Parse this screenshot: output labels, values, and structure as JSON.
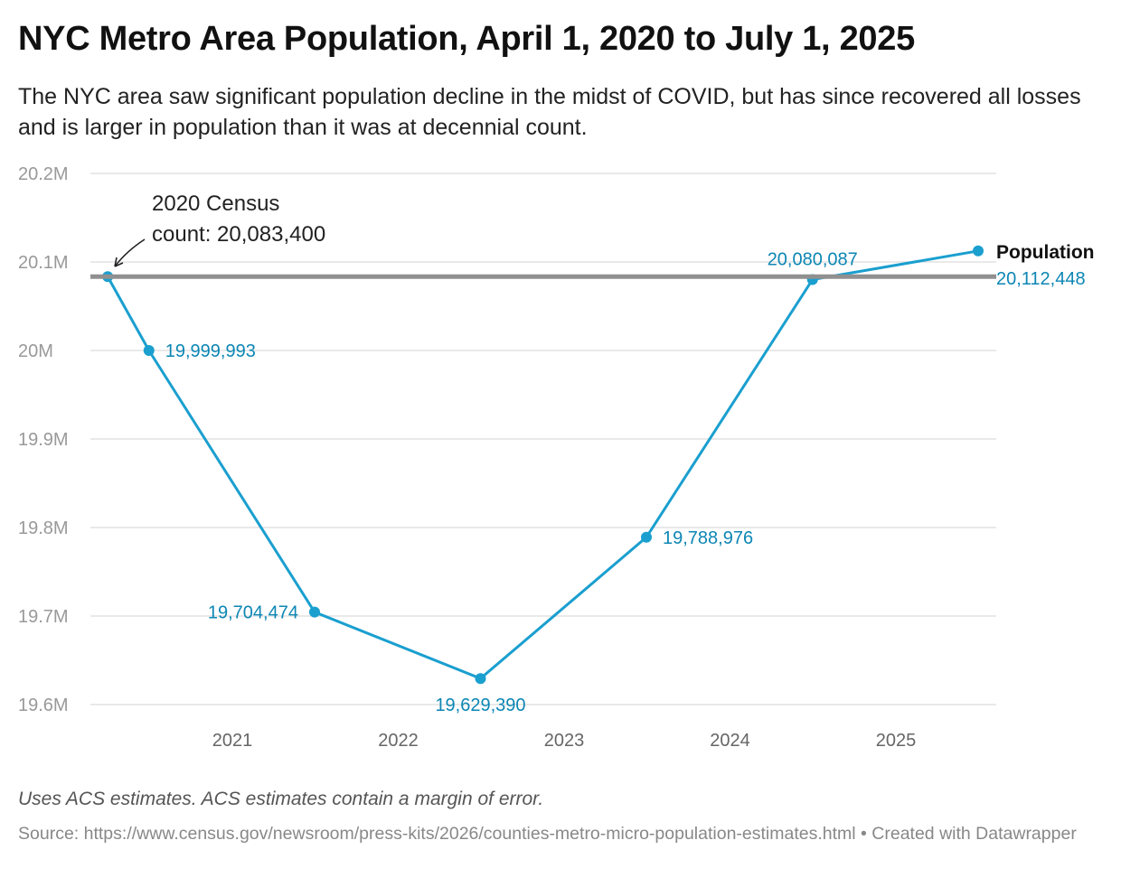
{
  "title": "NYC Metro Area Population, April 1, 2020 to July 1, 2025",
  "subtitle": "The NYC area saw significant population decline in the midst of COVID, but has since recovered all losses and is larger in population than it was at decennial count.",
  "notes": "Uses ACS estimates. ACS estimates contain a margin of error.",
  "source": "Source: https://www.census.gov/newsroom/press-kits/2026/counties-metro-micro-population-estimates.html • Created with Datawrapper",
  "chart_data": {
    "type": "line",
    "title": "NYC Metro Area Population, April 1, 2020 to July 1, 2025",
    "x": [
      "2020-04-01",
      "2020-07-01",
      "2021-07-01",
      "2022-07-01",
      "2023-07-01",
      "2024-07-01",
      "2025-07-01"
    ],
    "series": [
      {
        "name": "Population",
        "values": [
          20083400,
          19999993,
          19704474,
          19629390,
          19788976,
          20080087,
          20112448
        ],
        "labels": [
          "",
          "19,999,993",
          "19,704,474",
          "19,629,390",
          "19,788,976",
          "20,080,087",
          "20,112,448"
        ]
      }
    ],
    "ylim": [
      19600000,
      20200000
    ],
    "yticks": [
      {
        "v": 20200000,
        "label": "20.2M"
      },
      {
        "v": 20100000,
        "label": "20.1M"
      },
      {
        "v": 20000000,
        "label": "20M"
      },
      {
        "v": 19900000,
        "label": "19.9M"
      },
      {
        "v": 19800000,
        "label": "19.8M"
      },
      {
        "v": 19700000,
        "label": "19.7M"
      },
      {
        "v": 19600000,
        "label": "19.6M"
      }
    ],
    "xticks": [
      "2021",
      "2022",
      "2023",
      "2024",
      "2025"
    ],
    "reference_line": {
      "value": 20083400,
      "annotation": [
        "2020 Census",
        "count: 20,083,400"
      ],
      "color": "#909090"
    },
    "line_color": "#1a9fcf",
    "label_color": "#0c86b4",
    "grid": true,
    "legend": "end-of-line label"
  }
}
